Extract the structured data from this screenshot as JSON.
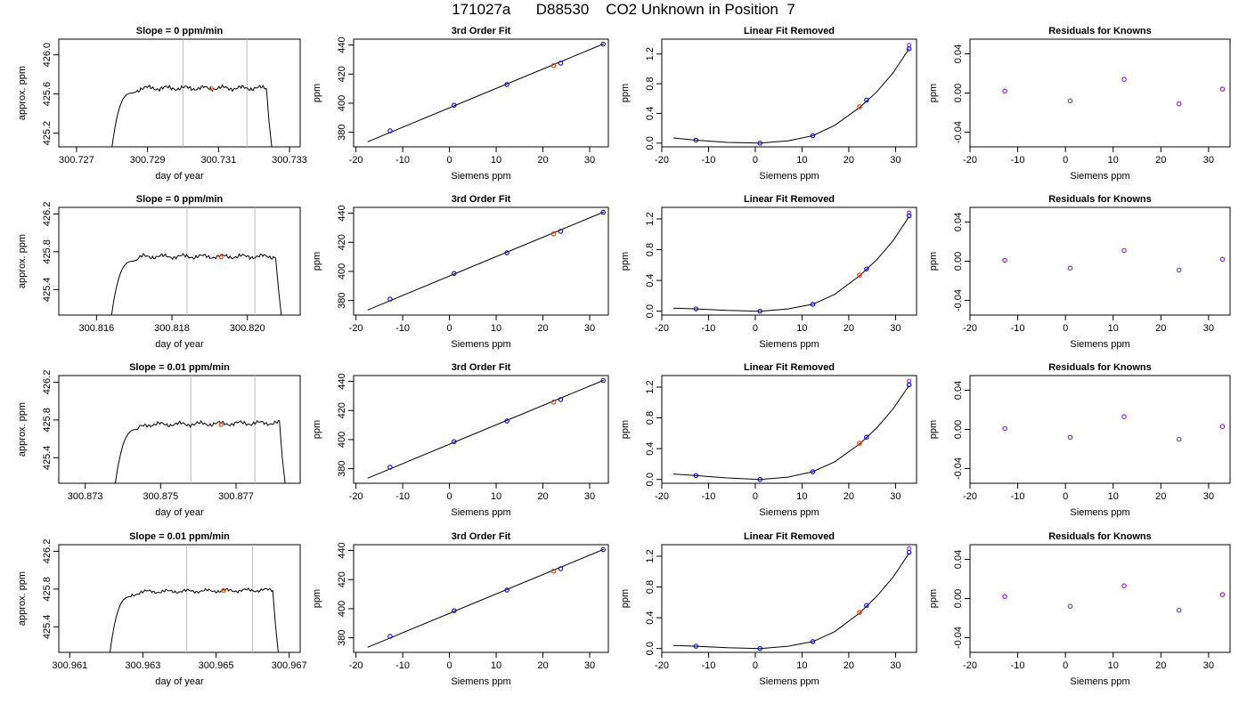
{
  "page_title": "171027a      D88530    CO2 Unknown in Position  7",
  "colors": {
    "axis": "#000000",
    "line": "#000000",
    "vline": "#bfbfbf",
    "known": "#0000ff",
    "unknown": "#ff4500",
    "residual": "#8a2be2",
    "residual_edge": "#0000ff"
  },
  "chart_data": [
    {
      "row": 1,
      "type": "line",
      "title": "Slope =  0  ppm/min",
      "xlabel": "day of year",
      "ylabel": "approx. ppm",
      "x_ticks": [
        "300.727",
        "300.729",
        "300.731",
        "300.733"
      ],
      "x_tick_values": [
        300.727,
        300.729,
        300.731,
        300.733
      ],
      "y_ticks": [
        "425.2",
        "425.6",
        "426.0"
      ],
      "y_tick_values": [
        425.2,
        425.6,
        426.0
      ],
      "xlim": [
        300.7265,
        300.7333
      ],
      "ylim": [
        425.06,
        426.16
      ],
      "trace": {
        "start": 300.728,
        "end": 300.7325,
        "rise_end": 300.7286,
        "level": 425.66,
        "noise": 0.025,
        "start_y": 425.06,
        "end_y": 425.06,
        "fall_start": 300.73235
      },
      "sample_lines": [
        300.73,
        300.7318
      ],
      "marker": {
        "x": 300.7308,
        "y": 425.655
      }
    },
    {
      "row": 1,
      "type": "scatter",
      "title": "3rd Order Fit",
      "xlabel": "Siemens ppm",
      "ylabel": "ppm",
      "x_ticks": [
        "-20",
        "-10",
        "0",
        "10",
        "20",
        "30"
      ],
      "x_tick_values": [
        -20,
        -10,
        0,
        10,
        20,
        30
      ],
      "y_ticks": [
        "380",
        "400",
        "420",
        "440"
      ],
      "y_tick_values": [
        380,
        400,
        420,
        440
      ],
      "xlim": [
        -20.5,
        34
      ],
      "ylim": [
        370,
        444
      ],
      "knowns": [
        [
          -12.7,
          381.0
        ],
        [
          1.0,
          398.6
        ],
        [
          12.3,
          412.8
        ],
        [
          23.8,
          427.5
        ],
        [
          32.9,
          440.6
        ]
      ],
      "unknown": [
        [
          22.3,
          425.8
        ]
      ],
      "fit_line": [
        [
          -17.5,
          373.5
        ],
        [
          33.0,
          440.8
        ]
      ]
    },
    {
      "row": 1,
      "type": "scatter",
      "title": "Linear Fit Removed",
      "xlabel": "Siemens ppm",
      "ylabel": "ppm",
      "x_ticks": [
        "-20",
        "-10",
        "0",
        "10",
        "20",
        "30"
      ],
      "x_tick_values": [
        -20,
        -10,
        0,
        10,
        20,
        30
      ],
      "y_ticks": [
        "0.0",
        "0.4",
        "0.8",
        "1.2"
      ],
      "y_tick_values": [
        0.0,
        0.4,
        0.8,
        1.2
      ],
      "xlim": [
        -20,
        34.5
      ],
      "ylim": [
        -0.05,
        1.4
      ],
      "knowns": [
        [
          -12.7,
          0.04
        ],
        [
          1.0,
          0.0
        ],
        [
          12.3,
          0.1
        ],
        [
          23.8,
          0.58
        ],
        [
          32.9,
          1.27
        ]
      ],
      "unknown": [
        [
          22.3,
          0.49
        ]
      ],
      "extra_points": [
        [
          32.9,
          1.32
        ]
      ],
      "curve": [
        [
          -17.5,
          0.07
        ],
        [
          -12.7,
          0.04
        ],
        [
          -6,
          0.01
        ],
        [
          1.0,
          0.0
        ],
        [
          7,
          0.03
        ],
        [
          12.3,
          0.1
        ],
        [
          17,
          0.24
        ],
        [
          22.3,
          0.48
        ],
        [
          26,
          0.69
        ],
        [
          29.5,
          0.95
        ],
        [
          32.9,
          1.27
        ]
      ]
    },
    {
      "row": 1,
      "type": "scatter",
      "title": "Residuals for Knowns",
      "xlabel": "Siemens ppm",
      "ylabel": "ppm",
      "x_ticks": [
        "-20",
        "-10",
        "0",
        "10",
        "20",
        "30"
      ],
      "x_tick_values": [
        -20,
        -10,
        0,
        10,
        20,
        30
      ],
      "y_ticks": [
        "-0.04",
        "0.00",
        "0.04"
      ],
      "y_tick_values": [
        -0.04,
        0.0,
        0.04
      ],
      "xlim": [
        -20,
        34.5
      ],
      "ylim": [
        -0.055,
        0.055
      ],
      "residuals": [
        [
          -12.7,
          0.002
        ],
        [
          1.0,
          -0.008
        ],
        [
          12.3,
          0.014
        ],
        [
          23.8,
          -0.011
        ],
        [
          32.9,
          0.004
        ]
      ]
    },
    {
      "row": 2,
      "type": "line",
      "title": "Slope =  0  ppm/min",
      "xlabel": "day of year",
      "ylabel": "approx. ppm",
      "x_ticks": [
        "300.816",
        "300.818",
        "300.820"
      ],
      "x_tick_values": [
        300.816,
        300.818,
        300.82
      ],
      "y_ticks": [
        "425.4",
        "425.8",
        "426.2"
      ],
      "y_tick_values": [
        425.4,
        425.8,
        426.2
      ],
      "xlim": [
        300.815,
        300.8214
      ],
      "ylim": [
        425.13,
        426.27
      ],
      "trace": {
        "start": 300.8164,
        "end": 300.8209,
        "rise_end": 300.817,
        "level": 425.75,
        "noise": 0.025,
        "start_y": 425.13,
        "end_y": 425.13,
        "fall_start": 300.82075
      },
      "sample_lines": [
        300.8184,
        300.8202
      ],
      "marker": {
        "x": 300.8193,
        "y": 425.745
      }
    },
    {
      "row": 2,
      "type": "scatter",
      "title": "3rd Order Fit",
      "xlabel": "Siemens ppm",
      "ylabel": "ppm",
      "x_ticks": [
        "-20",
        "-10",
        "0",
        "10",
        "20",
        "30"
      ],
      "x_tick_values": [
        -20,
        -10,
        0,
        10,
        20,
        30
      ],
      "y_ticks": [
        "380",
        "400",
        "420",
        "440"
      ],
      "y_tick_values": [
        380,
        400,
        420,
        440
      ],
      "xlim": [
        -20.5,
        34
      ],
      "ylim": [
        370,
        444
      ],
      "knowns": [
        [
          -12.7,
          381.0
        ],
        [
          1.0,
          398.6
        ],
        [
          12.3,
          412.8
        ],
        [
          23.8,
          427.5
        ],
        [
          32.9,
          440.6
        ]
      ],
      "unknown": [
        [
          22.3,
          425.8
        ]
      ],
      "fit_line": [
        [
          -17.5,
          373.5
        ],
        [
          33.0,
          440.8
        ]
      ]
    },
    {
      "row": 2,
      "type": "scatter",
      "title": "Linear Fit Removed",
      "xlabel": "Siemens ppm",
      "ylabel": "ppm",
      "x_ticks": [
        "-20",
        "-10",
        "0",
        "10",
        "20",
        "30"
      ],
      "x_tick_values": [
        -20,
        -10,
        0,
        10,
        20,
        30
      ],
      "y_ticks": [
        "0.0",
        "0.4",
        "0.8",
        "1.2"
      ],
      "y_tick_values": [
        0.0,
        0.4,
        0.8,
        1.2
      ],
      "xlim": [
        -20,
        34.5
      ],
      "ylim": [
        -0.05,
        1.35
      ],
      "knowns": [
        [
          -12.7,
          0.03
        ],
        [
          1.0,
          0.0
        ],
        [
          12.3,
          0.09
        ],
        [
          23.8,
          0.55
        ],
        [
          32.9,
          1.24
        ]
      ],
      "unknown": [
        [
          22.3,
          0.47
        ]
      ],
      "extra_points": [
        [
          32.9,
          1.28
        ]
      ],
      "curve": [
        [
          -17.5,
          0.04
        ],
        [
          -12.7,
          0.03
        ],
        [
          -6,
          0.01
        ],
        [
          1.0,
          0.0
        ],
        [
          7,
          0.03
        ],
        [
          12.3,
          0.09
        ],
        [
          17,
          0.22
        ],
        [
          22.3,
          0.46
        ],
        [
          26,
          0.67
        ],
        [
          29.5,
          0.92
        ],
        [
          32.9,
          1.23
        ]
      ]
    },
    {
      "row": 2,
      "type": "scatter",
      "title": "Residuals for Knowns",
      "xlabel": "Siemens ppm",
      "ylabel": "ppm",
      "x_ticks": [
        "-20",
        "-10",
        "0",
        "10",
        "20",
        "30"
      ],
      "x_tick_values": [
        -20,
        -10,
        0,
        10,
        20,
        30
      ],
      "y_ticks": [
        "-0.04",
        "0.00",
        "0.04"
      ],
      "y_tick_values": [
        -0.04,
        0.0,
        0.04
      ],
      "xlim": [
        -20,
        34.5
      ],
      "ylim": [
        -0.055,
        0.055
      ],
      "residuals": [
        [
          -12.7,
          0.001
        ],
        [
          1.0,
          -0.007
        ],
        [
          12.3,
          0.011
        ],
        [
          23.8,
          -0.009
        ],
        [
          32.9,
          0.002
        ]
      ]
    },
    {
      "row": 3,
      "type": "line",
      "title": "Slope =  0.01  ppm/min",
      "xlabel": "day of year",
      "ylabel": "approx. ppm",
      "x_ticks": [
        "300.873",
        "300.875",
        "300.877"
      ],
      "x_tick_values": [
        300.873,
        300.875,
        300.877
      ],
      "y_ticks": [
        "425.4",
        "425.8",
        "426.2"
      ],
      "y_tick_values": [
        425.4,
        425.8,
        426.2
      ],
      "xlim": [
        300.8723,
        300.8787
      ],
      "ylim": [
        425.13,
        426.27
      ],
      "trace": {
        "start": 300.8738,
        "end": 300.8783,
        "rise_end": 300.8744,
        "level": 425.75,
        "noise": 0.025,
        "slope": 0.005,
        "start_y": 425.13,
        "end_y": 425.13,
        "fall_start": 300.87815
      },
      "sample_lines": [
        300.8758,
        300.8775
      ],
      "marker": {
        "x": 300.8766,
        "y": 425.75
      }
    },
    {
      "row": 3,
      "type": "scatter",
      "title": "3rd Order Fit",
      "xlabel": "Siemens ppm",
      "ylabel": "ppm",
      "x_ticks": [
        "-20",
        "-10",
        "0",
        "10",
        "20",
        "30"
      ],
      "x_tick_values": [
        -20,
        -10,
        0,
        10,
        20,
        30
      ],
      "y_ticks": [
        "380",
        "400",
        "420",
        "440"
      ],
      "y_tick_values": [
        380,
        400,
        420,
        440
      ],
      "xlim": [
        -20.5,
        34
      ],
      "ylim": [
        370,
        444
      ],
      "knowns": [
        [
          -12.7,
          381.0
        ],
        [
          1.0,
          398.6
        ],
        [
          12.3,
          412.8
        ],
        [
          23.8,
          427.5
        ],
        [
          32.9,
          440.6
        ]
      ],
      "unknown": [
        [
          22.3,
          425.8
        ]
      ],
      "fit_line": [
        [
          -17.5,
          373.5
        ],
        [
          33.0,
          440.8
        ]
      ]
    },
    {
      "row": 3,
      "type": "scatter",
      "title": "Linear Fit Removed",
      "xlabel": "Siemens ppm",
      "ylabel": "ppm",
      "x_ticks": [
        "-20",
        "-10",
        "0",
        "10",
        "20",
        "30"
      ],
      "x_tick_values": [
        -20,
        -10,
        0,
        10,
        20,
        30
      ],
      "y_ticks": [
        "0.0",
        "0.4",
        "0.8",
        "1.2"
      ],
      "y_tick_values": [
        0.0,
        0.4,
        0.8,
        1.2
      ],
      "xlim": [
        -20,
        34.5
      ],
      "ylim": [
        -0.05,
        1.35
      ],
      "knowns": [
        [
          -12.7,
          0.05
        ],
        [
          1.0,
          0.0
        ],
        [
          12.3,
          0.1
        ],
        [
          23.8,
          0.55
        ],
        [
          32.9,
          1.23
        ]
      ],
      "unknown": [
        [
          22.3,
          0.47
        ]
      ],
      "extra_points": [
        [
          32.9,
          1.28
        ]
      ],
      "curve": [
        [
          -17.5,
          0.07
        ],
        [
          -12.7,
          0.05
        ],
        [
          -6,
          0.02
        ],
        [
          1.0,
          0.0
        ],
        [
          7,
          0.03
        ],
        [
          12.3,
          0.1
        ],
        [
          17,
          0.23
        ],
        [
          22.3,
          0.46
        ],
        [
          26,
          0.67
        ],
        [
          29.5,
          0.92
        ],
        [
          32.9,
          1.22
        ]
      ]
    },
    {
      "row": 3,
      "type": "scatter",
      "title": "Residuals for Knowns",
      "xlabel": "Siemens ppm",
      "ylabel": "ppm",
      "x_ticks": [
        "-20",
        "-10",
        "0",
        "10",
        "20",
        "30"
      ],
      "x_tick_values": [
        -20,
        -10,
        0,
        10,
        20,
        30
      ],
      "y_ticks": [
        "-0.04",
        "0.00",
        "0.04"
      ],
      "y_tick_values": [
        -0.04,
        0.0,
        0.04
      ],
      "xlim": [
        -20,
        34.5
      ],
      "ylim": [
        -0.055,
        0.055
      ],
      "residuals": [
        [
          -12.7,
          0.001
        ],
        [
          1.0,
          -0.008
        ],
        [
          12.3,
          0.013
        ],
        [
          23.8,
          -0.01
        ],
        [
          32.9,
          0.003
        ]
      ]
    },
    {
      "row": 4,
      "type": "line",
      "title": "Slope =  0.01  ppm/min",
      "xlabel": "day of year",
      "ylabel": "approx. ppm",
      "x_ticks": [
        "300.961",
        "300.963",
        "300.965",
        "300.967"
      ],
      "x_tick_values": [
        300.961,
        300.963,
        300.965,
        300.967
      ],
      "y_ticks": [
        "425.4",
        "425.8",
        "426.2"
      ],
      "y_tick_values": [
        425.4,
        425.8,
        426.2
      ],
      "xlim": [
        300.9607,
        300.9673
      ],
      "ylim": [
        425.13,
        426.27
      ],
      "trace": {
        "start": 300.9621,
        "end": 300.9667,
        "rise_end": 300.9627,
        "level": 425.77,
        "noise": 0.02,
        "slope": 0.005,
        "start_y": 425.13,
        "end_y": 425.13,
        "fall_start": 300.96655
      },
      "sample_lines": [
        300.9642,
        300.966
      ],
      "marker": {
        "x": 300.9652,
        "y": 425.785
      }
    },
    {
      "row": 4,
      "type": "scatter",
      "title": "3rd Order Fit",
      "xlabel": "Siemens ppm",
      "ylabel": "ppm",
      "x_ticks": [
        "-20",
        "-10",
        "0",
        "10",
        "20",
        "30"
      ],
      "x_tick_values": [
        -20,
        -10,
        0,
        10,
        20,
        30
      ],
      "y_ticks": [
        "380",
        "400",
        "420",
        "440"
      ],
      "y_tick_values": [
        380,
        400,
        420,
        440
      ],
      "xlim": [
        -20.5,
        34
      ],
      "ylim": [
        370,
        444
      ],
      "knowns": [
        [
          -12.7,
          381.0
        ],
        [
          1.0,
          398.6
        ],
        [
          12.3,
          412.8
        ],
        [
          23.8,
          427.5
        ],
        [
          32.9,
          440.6
        ]
      ],
      "unknown": [
        [
          22.3,
          425.8
        ]
      ],
      "fit_line": [
        [
          -17.5,
          373.5
        ],
        [
          33.0,
          440.8
        ]
      ]
    },
    {
      "row": 4,
      "type": "scatter",
      "title": "Linear Fit Removed",
      "xlabel": "Siemens ppm",
      "ylabel": "ppm",
      "x_ticks": [
        "-20",
        "-10",
        "0",
        "10",
        "20",
        "30"
      ],
      "x_tick_values": [
        -20,
        -10,
        0,
        10,
        20,
        30
      ],
      "y_ticks": [
        "0.0",
        "0.4",
        "0.8",
        "1.2"
      ],
      "y_tick_values": [
        0.0,
        0.4,
        0.8,
        1.2
      ],
      "xlim": [
        -20,
        34.5
      ],
      "ylim": [
        -0.05,
        1.35
      ],
      "knowns": [
        [
          -12.7,
          0.03
        ],
        [
          1.0,
          0.0
        ],
        [
          12.3,
          0.09
        ],
        [
          23.8,
          0.56
        ],
        [
          32.9,
          1.25
        ]
      ],
      "unknown": [
        [
          22.3,
          0.47
        ]
      ],
      "extra_points": [
        [
          32.9,
          1.3
        ]
      ],
      "curve": [
        [
          -17.5,
          0.04
        ],
        [
          -12.7,
          0.03
        ],
        [
          -6,
          0.01
        ],
        [
          1.0,
          0.0
        ],
        [
          7,
          0.03
        ],
        [
          12.3,
          0.09
        ],
        [
          17,
          0.22
        ],
        [
          22.3,
          0.46
        ],
        [
          26,
          0.68
        ],
        [
          29.5,
          0.93
        ],
        [
          32.9,
          1.24
        ]
      ]
    },
    {
      "row": 4,
      "type": "scatter",
      "title": "Residuals for Knowns",
      "xlabel": "Siemens ppm",
      "ylabel": "ppm",
      "x_ticks": [
        "-20",
        "-10",
        "0",
        "10",
        "20",
        "30"
      ],
      "x_tick_values": [
        -20,
        -10,
        0,
        10,
        20,
        30
      ],
      "y_ticks": [
        "-0.04",
        "0.00",
        "0.04"
      ],
      "y_tick_values": [
        -0.04,
        0.0,
        0.04
      ],
      "xlim": [
        -20,
        34.5
      ],
      "ylim": [
        -0.055,
        0.055
      ],
      "residuals": [
        [
          -12.7,
          0.002
        ],
        [
          1.0,
          -0.008
        ],
        [
          12.3,
          0.013
        ],
        [
          23.8,
          -0.012
        ],
        [
          32.9,
          0.004
        ]
      ]
    }
  ]
}
